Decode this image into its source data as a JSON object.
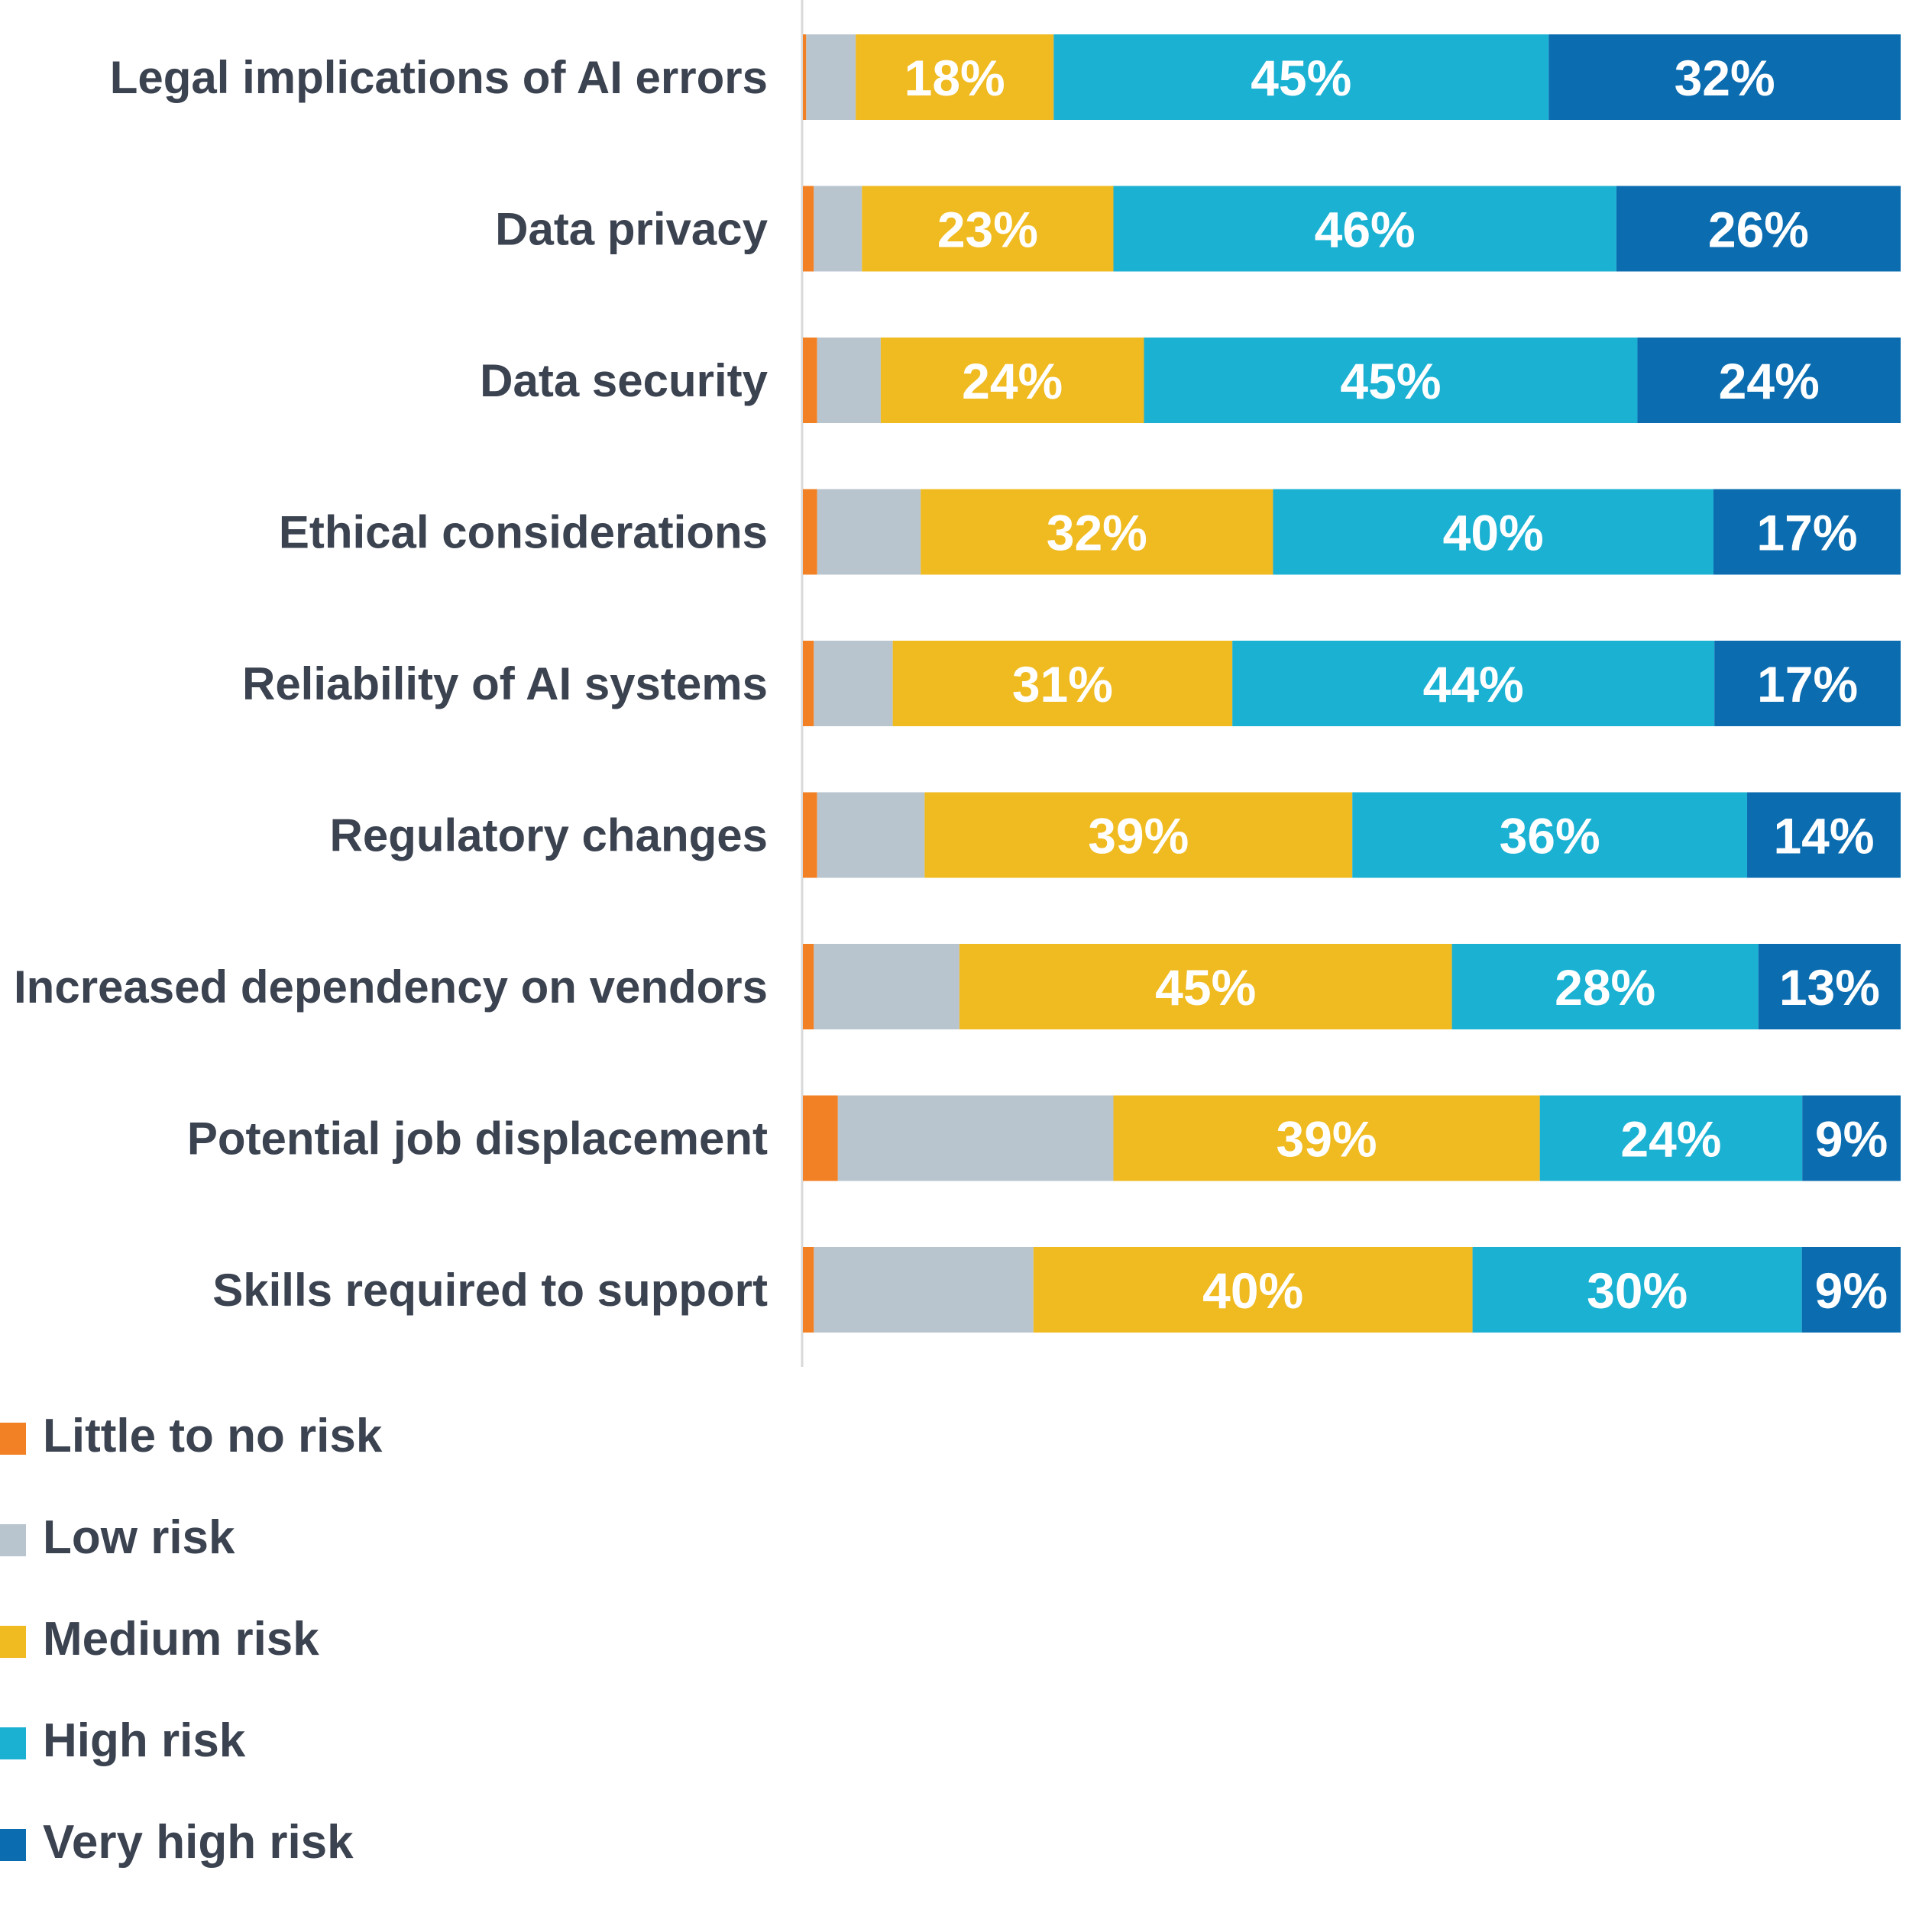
{
  "chart_data": {
    "type": "bar",
    "orientation": "horizontal",
    "stacked": true,
    "normalized_percent": true,
    "categories": [
      "Legal implications of AI errors",
      "Data privacy",
      "Data security",
      "Ethical considerations",
      "Reliability of AI systems",
      "Regulatory changes",
      "Increased dependency on vendors",
      "Potential job displacement",
      "Skills required to support"
    ],
    "series": [
      {
        "name": "Little to no risk",
        "color": "#f28125",
        "values": [
          0.3,
          1,
          1.3,
          1.3,
          1,
          1.3,
          1,
          3.2,
          1
        ],
        "labels": [
          "",
          "",
          "",
          "",
          "",
          "",
          "",
          "",
          ""
        ]
      },
      {
        "name": "Low risk",
        "color": "#b8c5cf",
        "values": [
          4.5,
          4.4,
          5.8,
          9.4,
          7.2,
          9.8,
          13.3,
          25.2,
          20.0
        ],
        "labels": [
          "",
          "",
          "",
          "",
          "",
          "",
          "",
          "",
          ""
        ]
      },
      {
        "name": "Medium risk",
        "color": "#f0ba21",
        "values": [
          18,
          23,
          24,
          32,
          31,
          39,
          45,
          39,
          40
        ],
        "labels": [
          "18%",
          "23%",
          "24%",
          "32%",
          "31%",
          "39%",
          "45%",
          "39%",
          "40%"
        ]
      },
      {
        "name": "High risk",
        "color": "#1bb1d3",
        "values": [
          45,
          46,
          45,
          40,
          44,
          36,
          28,
          24,
          30
        ],
        "labels": [
          "45%",
          "46%",
          "45%",
          "40%",
          "44%",
          "36%",
          "28%",
          "24%",
          "30%"
        ]
      },
      {
        "name": "Very high risk",
        "color": "#0b6cb0",
        "values": [
          32,
          26,
          24,
          17,
          17,
          14,
          13,
          9,
          9
        ],
        "labels": [
          "32%",
          "26%",
          "24%",
          "17%",
          "17%",
          "14%",
          "13%",
          "9%",
          "9%"
        ]
      }
    ],
    "title": "",
    "xlabel": "",
    "ylabel": "",
    "grid": false,
    "legend_position": "bottom-left"
  }
}
